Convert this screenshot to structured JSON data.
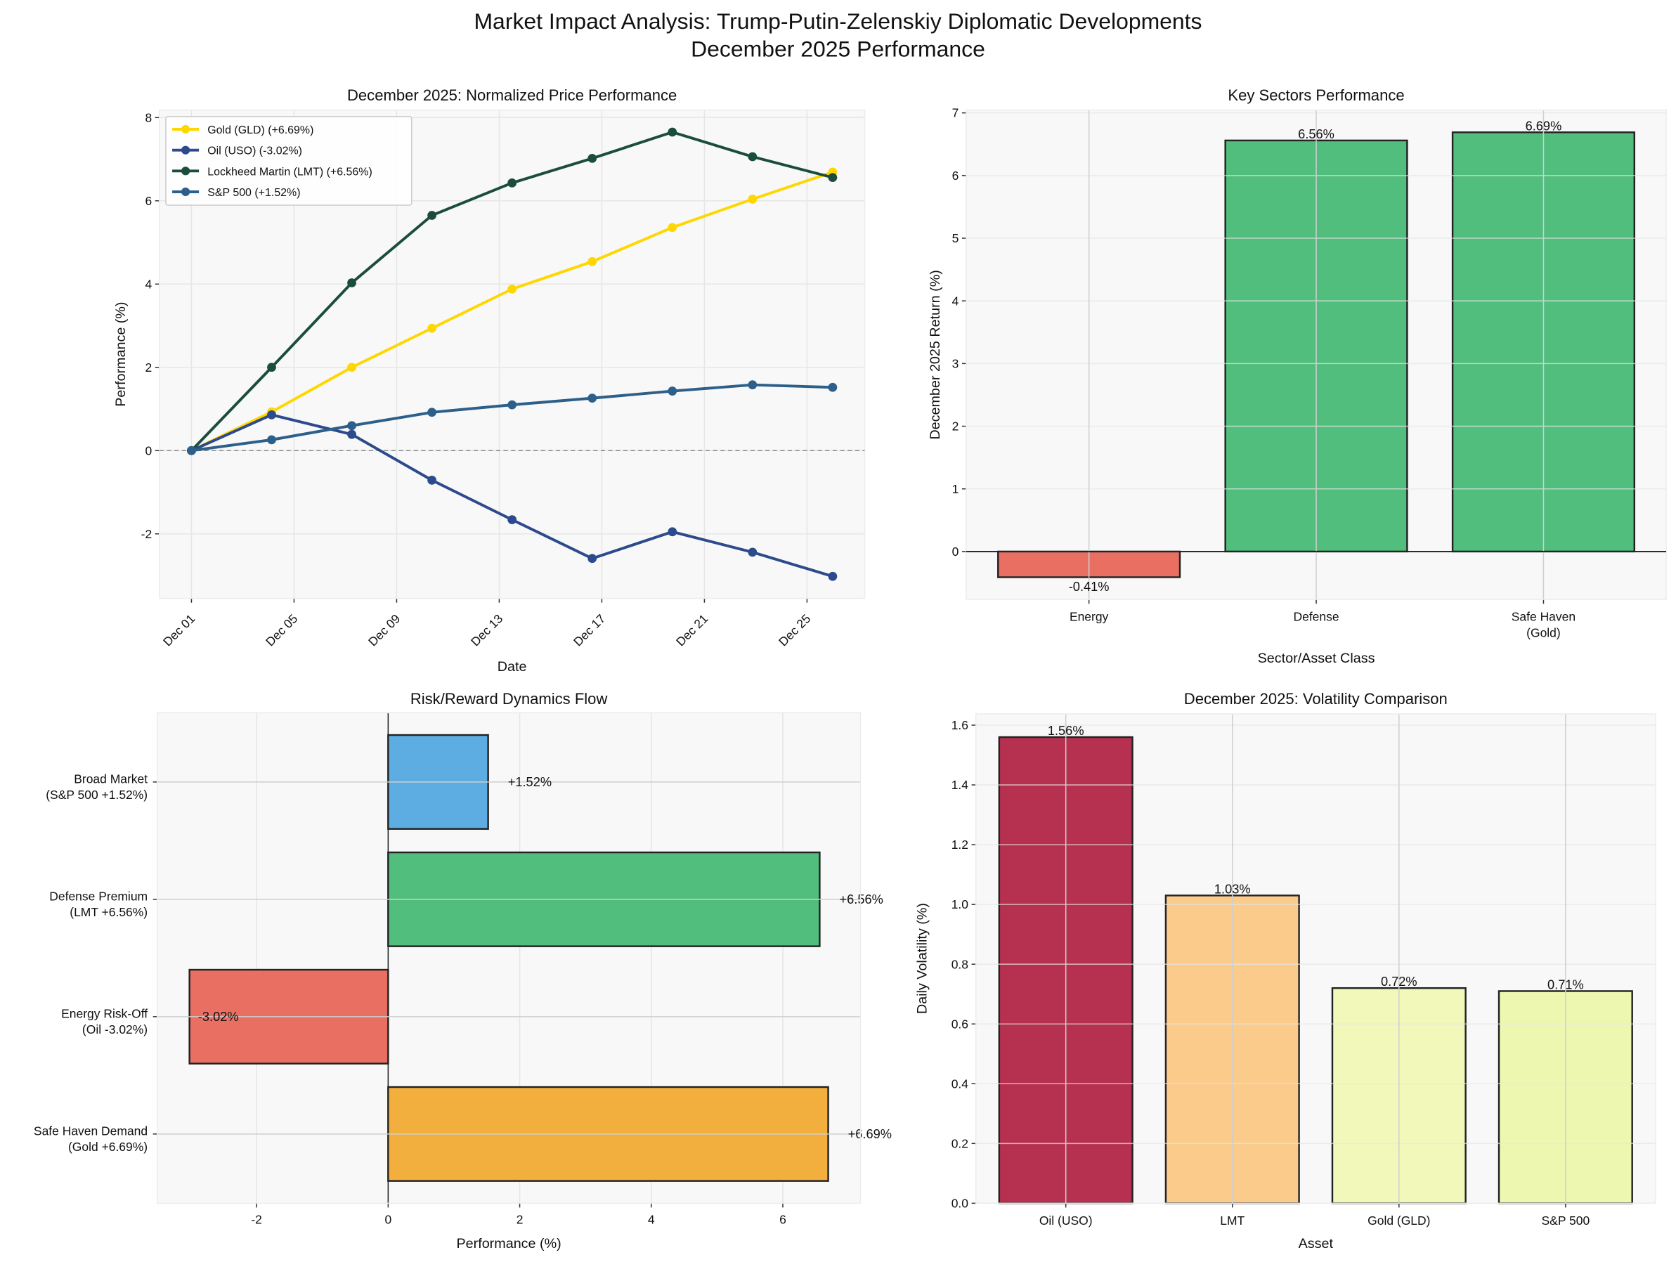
{
  "figure": {
    "title_line1": "Market Impact Analysis: Trump-Putin-Zelenskiy Diplomatic Developments",
    "title_line2": "December 2025 Performance"
  },
  "chart_data": [
    {
      "type": "line",
      "title": "December 2025: Normalized Price Performance",
      "xlabel": "Date",
      "ylabel": "Performance (%)",
      "x": [
        "2025-12-01T00:00",
        "2025-12-04T03:00",
        "2025-12-07T06:00",
        "2025-12-10T09:00",
        "2025-12-13T12:00",
        "2025-12-16T15:00",
        "2025-12-19T18:00",
        "2025-12-22T21:00",
        "2025-12-26T00:00"
      ],
      "xticks": [
        "Dec 01",
        "Dec 05",
        "Dec 09",
        "Dec 13",
        "Dec 17",
        "Dec 21",
        "Dec 25"
      ],
      "yticks": [
        "-2",
        "0",
        "2",
        "4",
        "6",
        "8"
      ],
      "ylim": [
        -3.55,
        8.18
      ],
      "grid": true,
      "reference_line": 0,
      "legend": "top-left",
      "series": [
        {
          "name": "Gold (GLD) (+6.69%)",
          "color": "#FFD700",
          "values": [
            0,
            0.93,
            2.0,
            2.94,
            3.88,
            4.54,
            5.36,
            6.04,
            6.69
          ]
        },
        {
          "name": "Oil (USO) (-3.02%)",
          "color": "#2C4A8C",
          "values": [
            0,
            0.86,
            0.39,
            -0.71,
            -1.66,
            -2.59,
            -1.95,
            -2.44,
            -3.02
          ]
        },
        {
          "name": "Lockheed Martin (LMT) (+6.56%)",
          "color": "#1B4D3E",
          "values": [
            0,
            2.0,
            4.03,
            5.65,
            6.43,
            7.02,
            7.65,
            7.06,
            6.56
          ]
        },
        {
          "name": "S&P 500 (+1.52%)",
          "color": "#2C5F8A",
          "values": [
            0,
            0.26,
            0.6,
            0.92,
            1.1,
            1.26,
            1.43,
            1.58,
            1.52
          ]
        }
      ]
    },
    {
      "type": "bar",
      "title": "Key Sectors Performance",
      "xlabel": "Sector/Asset Class",
      "ylabel": "December 2025 Return (%)",
      "categories": [
        [
          "Energy"
        ],
        [
          "Defense"
        ],
        [
          "Safe Haven",
          "(Gold)"
        ]
      ],
      "values": [
        -0.41,
        6.56,
        6.69
      ],
      "labels": [
        "-0.41%",
        "6.56%",
        "6.69%"
      ],
      "colors": [
        "#E96F62",
        "#52BE7E",
        "#52BE7E"
      ],
      "yticks": [
        "0",
        "1",
        "2",
        "3",
        "4",
        "5",
        "6",
        "7"
      ],
      "ylim": [
        -0.765,
        7.045
      ],
      "grid": true
    },
    {
      "type": "bar",
      "orientation": "horizontal",
      "title": "Risk/Reward Dynamics Flow",
      "xlabel": "Performance (%)",
      "categories": [
        [
          "Safe Haven Demand",
          "(Gold +6.69%)"
        ],
        [
          "Energy Risk-Off",
          "(Oil -3.02%)"
        ],
        [
          "Defense Premium",
          "(LMT +6.56%)"
        ],
        [
          "Broad Market",
          "(S&P 500 +1.52%)"
        ]
      ],
      "values": [
        6.69,
        -3.02,
        6.56,
        1.52
      ],
      "labels": [
        "+6.69%",
        "-3.02%",
        "+6.56%",
        "+1.52%"
      ],
      "colors": [
        "#F3AF3D",
        "#E96F62",
        "#52BE7E",
        "#5DADE2"
      ],
      "xticks": [
        "-2",
        "0",
        "2",
        "4",
        "6"
      ],
      "xlim": [
        -3.51,
        7.18
      ],
      "grid": true
    },
    {
      "type": "bar",
      "title": "December 2025: Volatility Comparison",
      "xlabel": "Asset",
      "ylabel": "Daily Volatility (%)",
      "categories": [
        [
          "Oil (USO)"
        ],
        [
          "LMT"
        ],
        [
          "Gold (GLD)"
        ],
        [
          "S&P 500"
        ]
      ],
      "values": [
        1.56,
        1.03,
        0.72,
        0.71
      ],
      "labels": [
        "1.56%",
        "1.03%",
        "0.72%",
        "0.71%"
      ],
      "colors": [
        "#B5314F",
        "#FACB8B",
        "#F2F8B9",
        "#EEF7B0"
      ],
      "yticks": [
        "0.0",
        "0.2",
        "0.4",
        "0.6",
        "0.8",
        "1.0",
        "1.2",
        "1.4",
        "1.6"
      ],
      "ylim": [
        0,
        1.638
      ],
      "grid": true
    }
  ]
}
